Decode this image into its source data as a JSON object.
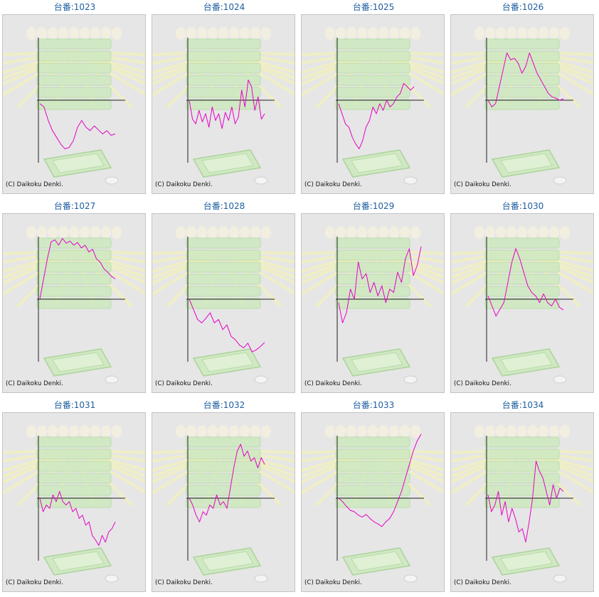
{
  "brand_color": "#1f5fa0",
  "line_color": "#e600c8",
  "copyright": "(C) Daikoku Denki.",
  "chart_data": [
    {
      "type": "line",
      "title": "台番:1023",
      "x": [
        0,
        1,
        2,
        3,
        4,
        5,
        6,
        7,
        8,
        9,
        10,
        11,
        12,
        13,
        14,
        15,
        16,
        17,
        18
      ],
      "values": [
        -5,
        -10,
        -30,
        -45,
        -55,
        -65,
        -72,
        -70,
        -60,
        -40,
        -30,
        -40,
        -45,
        -38,
        -44,
        -50,
        -45,
        -52,
        -50
      ]
    },
    {
      "type": "line",
      "title": "台番:1024",
      "x": [
        0,
        1,
        2,
        3,
        4,
        5,
        6,
        7,
        8,
        9,
        10,
        11,
        12,
        13,
        14,
        15,
        16,
        17,
        18,
        19,
        20,
        21,
        22,
        23
      ],
      "values": [
        0,
        -28,
        -35,
        -15,
        -32,
        -20,
        -40,
        -10,
        -30,
        -20,
        -42,
        -18,
        -30,
        -10,
        -35,
        -25,
        15,
        -10,
        30,
        20,
        -15,
        5,
        -28,
        -20
      ]
    },
    {
      "type": "line",
      "title": "台番:1025",
      "x": [
        0,
        1,
        2,
        3,
        4,
        5,
        6,
        7,
        8,
        9,
        10,
        11,
        12,
        13,
        14,
        15,
        16,
        17,
        18,
        19,
        20,
        21,
        22
      ],
      "values": [
        -5,
        -20,
        -35,
        -40,
        -55,
        -65,
        -72,
        -60,
        -40,
        -30,
        -10,
        -20,
        -5,
        -15,
        0,
        -10,
        -5,
        5,
        10,
        25,
        20,
        15,
        20
      ]
    },
    {
      "type": "line",
      "title": "台番:1026",
      "x": [
        0,
        1,
        2,
        3,
        4,
        5,
        6,
        7,
        8,
        9,
        10,
        11,
        12,
        13,
        14,
        15,
        16,
        17,
        18,
        19,
        20
      ],
      "values": [
        0,
        -10,
        -5,
        20,
        45,
        70,
        60,
        62,
        55,
        40,
        50,
        70,
        55,
        40,
        30,
        20,
        10,
        5,
        3,
        0,
        2
      ]
    },
    {
      "type": "line",
      "title": "台番:1027",
      "x": [
        0,
        1,
        2,
        3,
        4,
        5,
        6,
        7,
        8,
        9,
        10,
        11,
        12,
        13,
        14,
        15,
        16,
        17,
        18,
        19,
        20
      ],
      "values": [
        0,
        30,
        60,
        85,
        88,
        80,
        90,
        83,
        86,
        80,
        84,
        76,
        80,
        70,
        74,
        60,
        55,
        45,
        40,
        34,
        30
      ]
    },
    {
      "type": "line",
      "title": "台番:1028",
      "x": [
        0,
        1,
        2,
        3,
        4,
        5,
        6,
        7,
        8,
        9,
        10,
        11,
        12,
        13,
        14,
        15,
        16,
        17,
        18
      ],
      "values": [
        0,
        -15,
        -30,
        -35,
        -28,
        -20,
        -35,
        -30,
        -45,
        -38,
        -55,
        -60,
        -68,
        -72,
        -65,
        -78,
        -75,
        -70,
        -64
      ]
    },
    {
      "type": "line",
      "title": "台番:1029",
      "x": [
        0,
        1,
        2,
        3,
        4,
        5,
        6,
        7,
        8,
        9,
        10,
        11,
        12,
        13,
        14,
        15,
        16,
        17,
        18,
        19,
        20,
        21
      ],
      "values": [
        -5,
        -35,
        -20,
        15,
        0,
        55,
        30,
        38,
        10,
        25,
        5,
        20,
        -5,
        15,
        10,
        40,
        25,
        60,
        75,
        35,
        50,
        78
      ]
    },
    {
      "type": "line",
      "title": "台番:1030",
      "x": [
        0,
        1,
        2,
        3,
        4,
        5,
        6,
        7,
        8,
        9,
        10,
        11,
        12,
        13,
        14,
        15,
        16,
        17,
        18,
        19
      ],
      "values": [
        5,
        -10,
        -25,
        -15,
        -5,
        25,
        55,
        75,
        60,
        40,
        20,
        10,
        5,
        -5,
        8,
        -5,
        -10,
        0,
        -12,
        -16
      ]
    },
    {
      "type": "line",
      "title": "台番:1031",
      "x": [
        0,
        1,
        2,
        3,
        4,
        5,
        6,
        7,
        8,
        9,
        10,
        11,
        12,
        13,
        14,
        15,
        16,
        17,
        18,
        19,
        20,
        21,
        22,
        23
      ],
      "values": [
        0,
        -20,
        -10,
        -15,
        5,
        -5,
        10,
        -5,
        -10,
        -5,
        -20,
        -15,
        -30,
        -25,
        -40,
        -35,
        -55,
        -62,
        -70,
        -55,
        -65,
        -50,
        -45,
        -35
      ]
    },
    {
      "type": "line",
      "title": "台番:1032",
      "x": [
        0,
        1,
        2,
        3,
        4,
        5,
        6,
        7,
        8,
        9,
        10,
        11,
        12,
        13,
        14,
        15,
        16,
        17,
        18,
        19,
        20,
        21,
        22
      ],
      "values": [
        0,
        -10,
        -25,
        -35,
        -20,
        -25,
        -10,
        -15,
        5,
        -10,
        -5,
        -15,
        15,
        45,
        70,
        80,
        62,
        70,
        55,
        60,
        45,
        60,
        50
      ]
    },
    {
      "type": "line",
      "title": "台番:1033",
      "x": [
        0,
        1,
        2,
        3,
        4,
        5,
        6,
        7,
        8,
        9,
        10,
        11,
        12,
        13,
        14,
        15,
        16,
        17,
        18,
        19,
        20,
        21
      ],
      "values": [
        0,
        -5,
        -12,
        -18,
        -20,
        -25,
        -28,
        -24,
        -30,
        -35,
        -38,
        -42,
        -35,
        -30,
        -20,
        -5,
        10,
        30,
        50,
        70,
        85,
        95
      ]
    },
    {
      "type": "line",
      "title": "台番:1034",
      "x": [
        0,
        1,
        2,
        3,
        4,
        5,
        6,
        7,
        8,
        9,
        10,
        11,
        12,
        13,
        14,
        15,
        16,
        17,
        18,
        19,
        20,
        21,
        22
      ],
      "values": [
        5,
        -20,
        -10,
        10,
        -25,
        -5,
        -35,
        -15,
        -30,
        -50,
        -45,
        -65,
        -35,
        0,
        55,
        40,
        30,
        10,
        -10,
        20,
        0,
        15,
        10
      ]
    }
  ]
}
